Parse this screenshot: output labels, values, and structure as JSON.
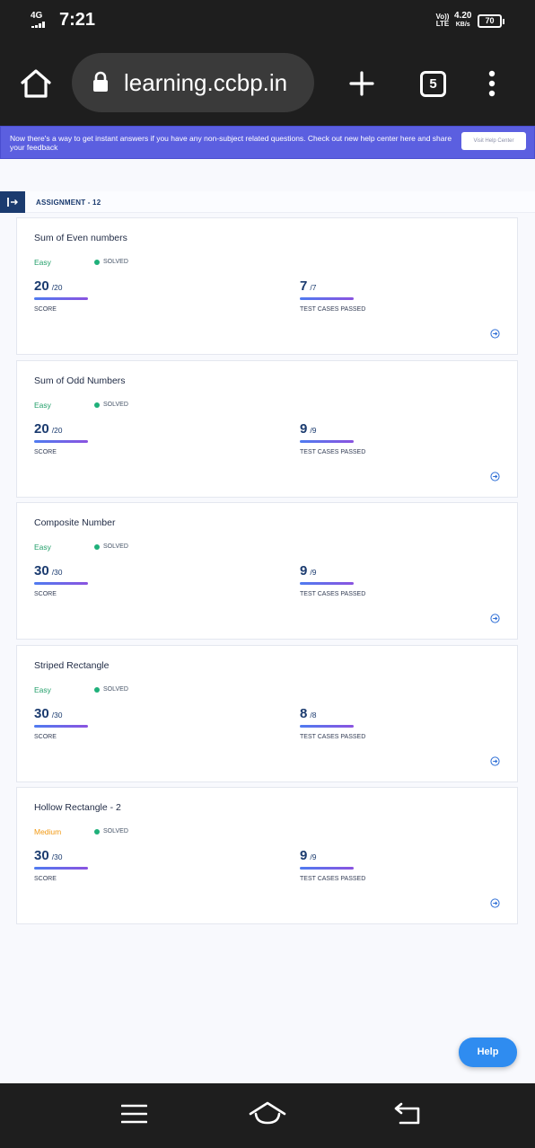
{
  "status_bar": {
    "network": "4G",
    "time": "7:21",
    "volte": "Vo)) LTE",
    "speed_value": "4.20",
    "speed_unit": "KB/s",
    "battery": "70"
  },
  "browser": {
    "url": "learning.ccbp.in",
    "tab_count": "5",
    "icons": [
      "home-icon",
      "lock-icon",
      "plus-icon",
      "tabs-icon",
      "more-vert-icon"
    ]
  },
  "banner": {
    "text": "Now there's a way to get instant answers if you have any non-subject related questions. Check out new help center here and share your feedback",
    "button": "Visit Help Center",
    "color": "#5b5fe0"
  },
  "assignment": {
    "title": "ASSIGNMENT - 12"
  },
  "labels": {
    "score": "SCORE",
    "tests": "TEST CASES PASSED"
  },
  "problems": [
    {
      "title": "Sum of Even numbers",
      "difficulty": "Easy",
      "status": "SOLVED",
      "score": "20",
      "score_total": "/20",
      "tests": "7",
      "tests_total": "/7"
    },
    {
      "title": "Sum of Odd Numbers",
      "difficulty": "Easy",
      "status": "SOLVED",
      "score": "20",
      "score_total": "/20",
      "tests": "9",
      "tests_total": "/9"
    },
    {
      "title": "Composite Number",
      "difficulty": "Easy",
      "status": "SOLVED",
      "score": "30",
      "score_total": "/30",
      "tests": "9",
      "tests_total": "/9"
    },
    {
      "title": "Striped Rectangle",
      "difficulty": "Easy",
      "status": "SOLVED",
      "score": "30",
      "score_total": "/30",
      "tests": "8",
      "tests_total": "/8"
    },
    {
      "title": "Hollow Rectangle - 2",
      "difficulty": "Medium",
      "status": "SOLVED",
      "score": "30",
      "score_total": "/30",
      "tests": "9",
      "tests_total": "/9"
    }
  ],
  "help": {
    "label": "Help",
    "color": "#2f8cf0"
  },
  "colors": {
    "easy": "#24a06b",
    "medium": "#f29a14",
    "solved_dot": "#1fb07a",
    "primary_text": "#1b3b6f"
  }
}
